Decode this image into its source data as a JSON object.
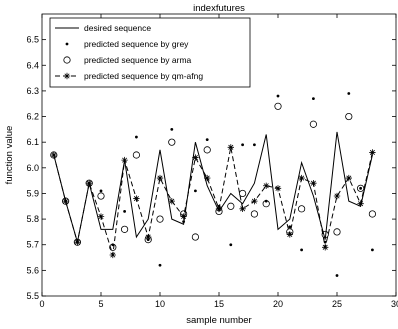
{
  "chart_data": {
    "type": "line",
    "title": "indexfutures",
    "xlabel": "sample number",
    "ylabel": "function value",
    "xlim": [
      0,
      30
    ],
    "ylim": [
      5.5,
      6.6
    ],
    "xticks": [
      0,
      5,
      10,
      15,
      20,
      25,
      30
    ],
    "yticks": [
      5.5,
      5.6,
      5.7,
      5.8,
      5.9,
      6.0,
      6.1,
      6.2,
      6.3,
      6.4,
      6.5
    ],
    "grid": false,
    "legend_position": "top-left",
    "x": [
      1,
      2,
      3,
      4,
      5,
      6,
      7,
      8,
      9,
      10,
      11,
      12,
      13,
      14,
      15,
      16,
      17,
      18,
      19,
      20,
      21,
      22,
      23,
      24,
      25,
      26,
      27,
      28
    ],
    "series": [
      {
        "name": "desired sequence",
        "style": "solid-line",
        "values": [
          6.05,
          5.87,
          5.71,
          5.94,
          5.76,
          5.76,
          6.03,
          5.73,
          5.8,
          6.07,
          5.8,
          5.78,
          6.1,
          5.93,
          5.83,
          5.9,
          5.86,
          5.94,
          6.13,
          5.76,
          5.8,
          6.02,
          5.89,
          5.72,
          6.14,
          5.87,
          5.85,
          6.05
        ]
      },
      {
        "name": "predicted sequence by grey",
        "style": "dot-marker",
        "values": [
          6.05,
          5.87,
          5.71,
          5.94,
          5.91,
          5.7,
          5.83,
          6.12,
          5.72,
          5.62,
          6.15,
          5.79,
          5.91,
          6.11,
          5.85,
          5.7,
          6.09,
          6.09,
          5.87,
          6.28,
          5.77,
          5.68,
          6.27,
          5.71,
          5.58,
          6.29,
          5.92,
          5.68
        ]
      },
      {
        "name": "predicted sequence by arma",
        "style": "circle-marker",
        "values": [
          6.05,
          5.87,
          5.71,
          5.94,
          5.89,
          5.69,
          5.76,
          6.05,
          5.72,
          5.8,
          6.1,
          5.82,
          5.73,
          6.07,
          5.83,
          5.85,
          5.9,
          5.82,
          5.86,
          6.24,
          5.75,
          5.84,
          6.17,
          5.74,
          5.75,
          6.2,
          5.92,
          5.82
        ]
      },
      {
        "name": "predicted sequence by qm-afng",
        "style": "dashed-star-marker",
        "values": [
          6.05,
          5.87,
          5.71,
          5.94,
          5.81,
          5.66,
          6.03,
          5.88,
          5.73,
          5.96,
          5.87,
          5.81,
          6.04,
          5.96,
          5.84,
          6.08,
          5.84,
          5.87,
          5.93,
          5.92,
          5.74,
          5.96,
          5.94,
          5.69,
          5.89,
          5.96,
          5.86,
          6.06
        ]
      }
    ]
  }
}
